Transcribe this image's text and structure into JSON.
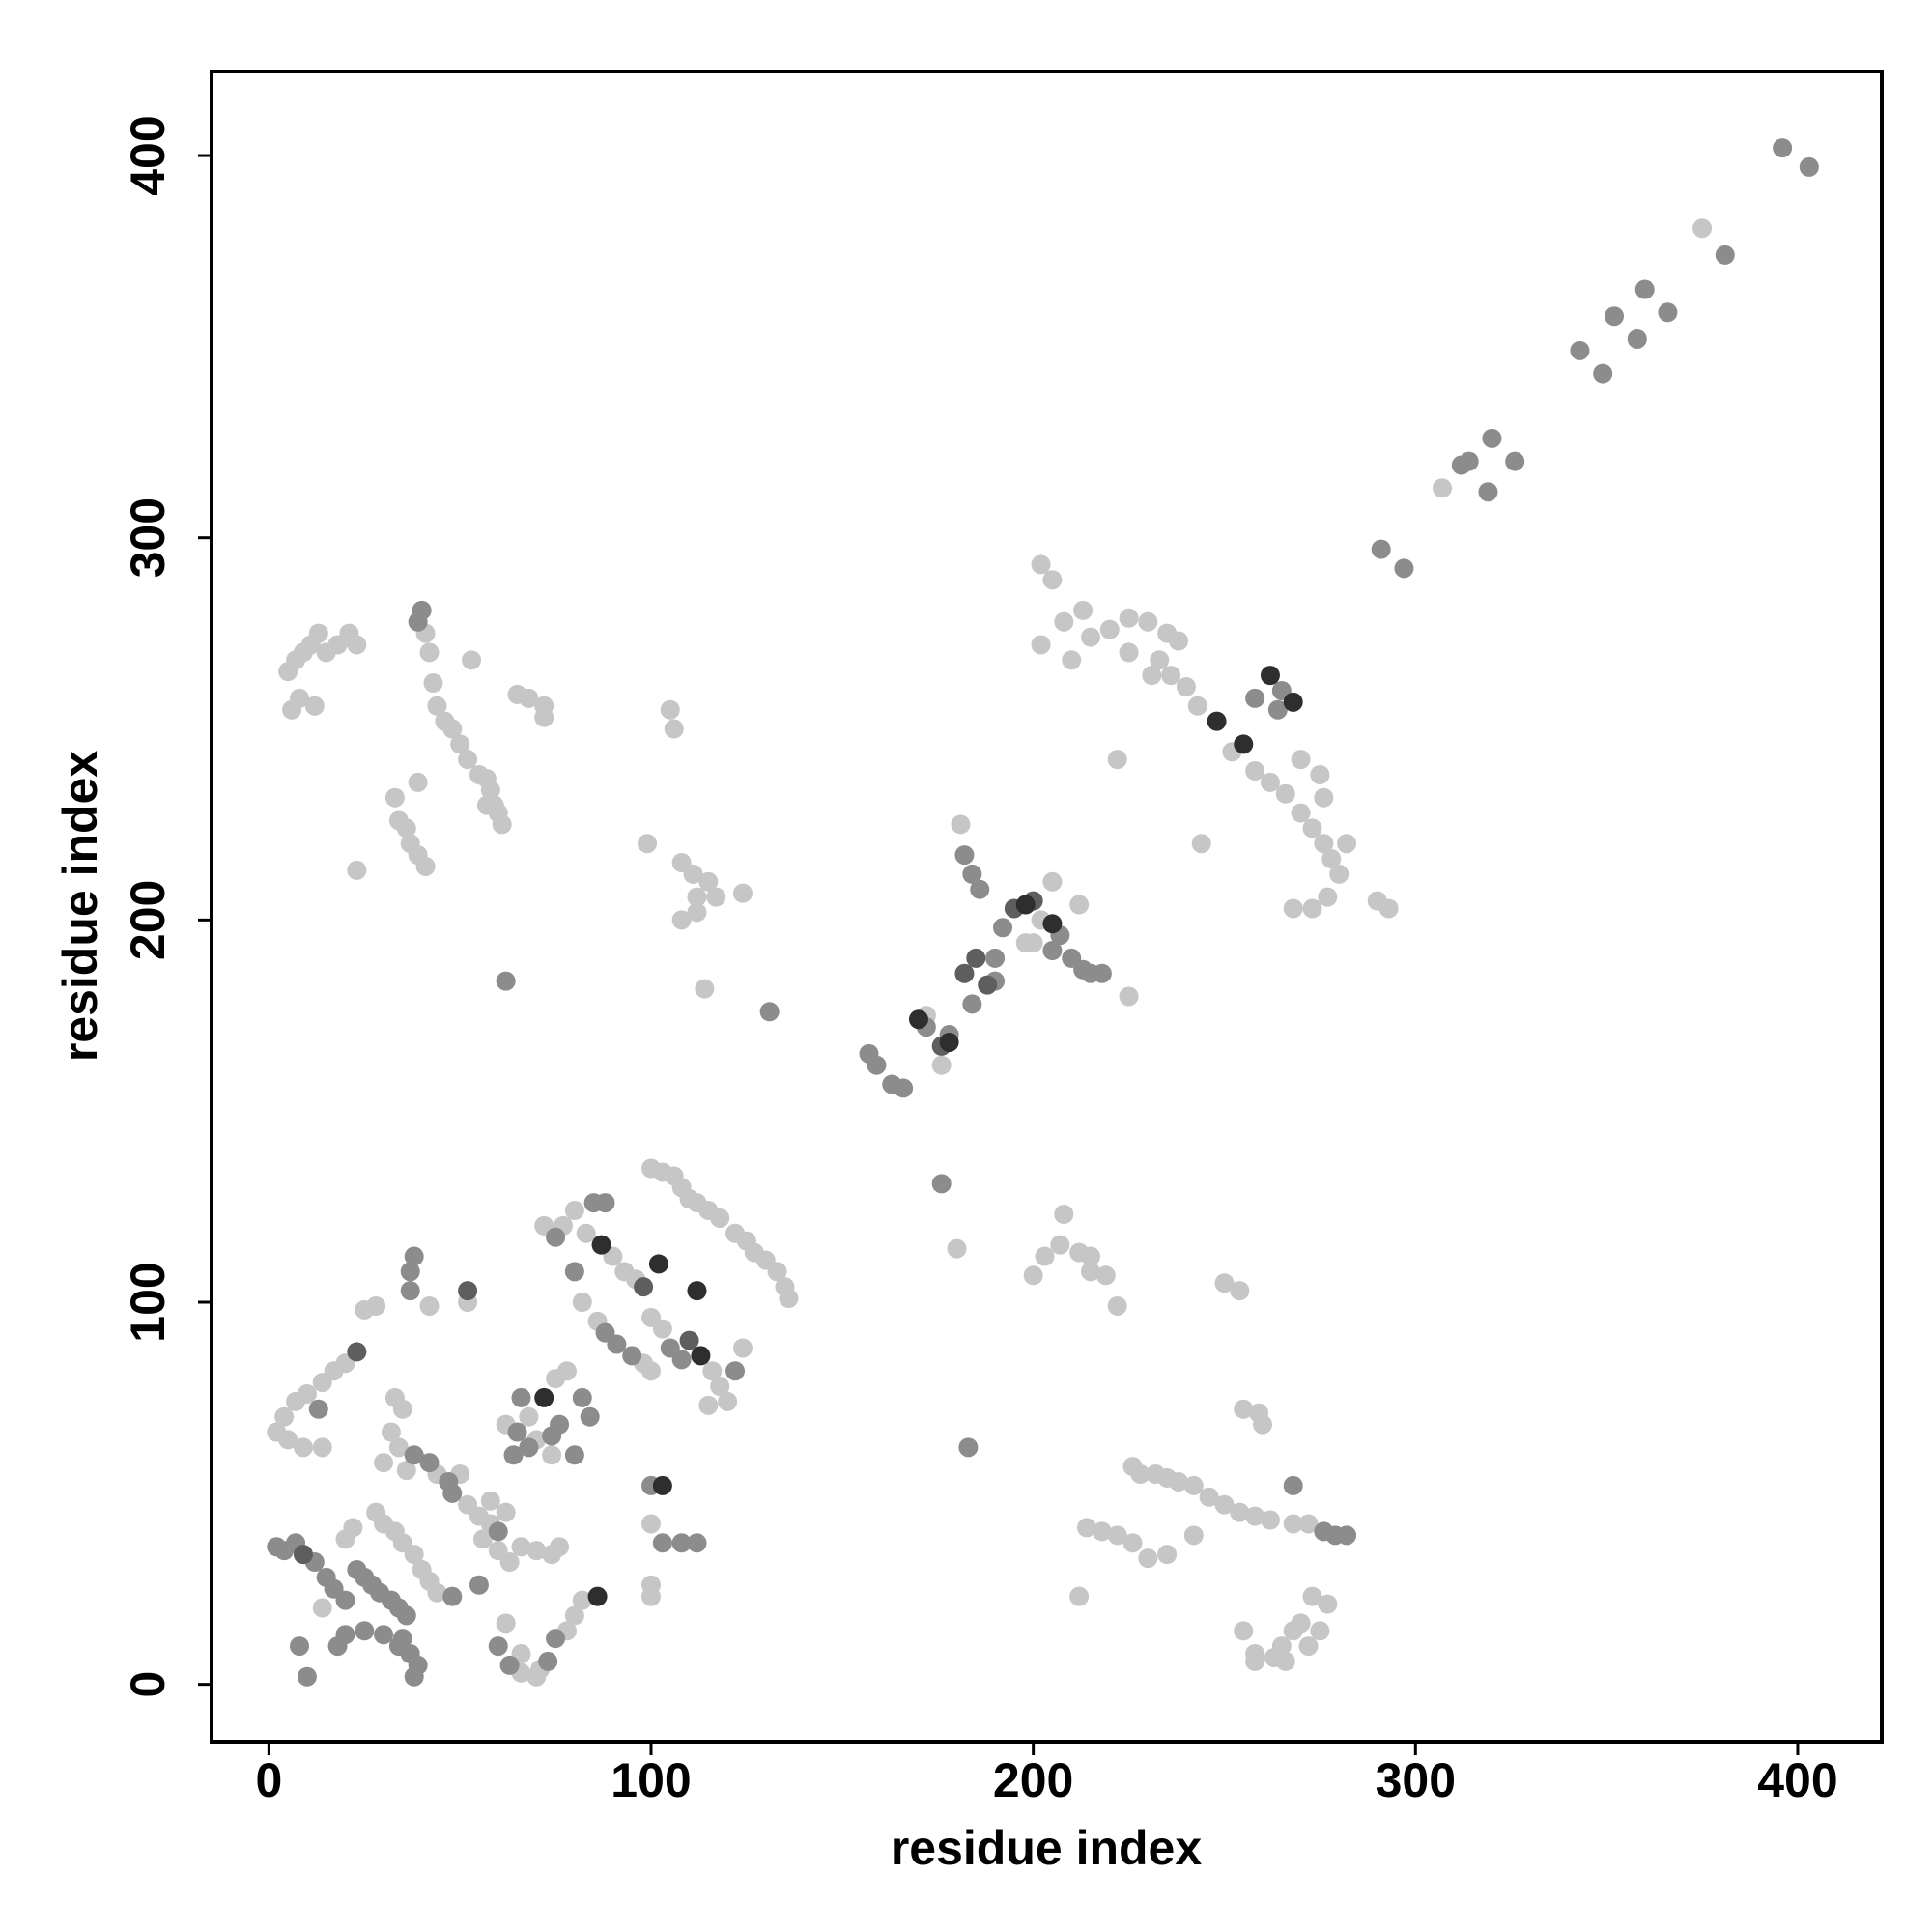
{
  "chart_data": {
    "type": "scatter",
    "x_label": "residue index",
    "y_label": "residue index",
    "xlim": [
      -15,
      422
    ],
    "ylim": [
      -15,
      422
    ],
    "xticks": [
      0,
      100,
      200,
      300,
      400
    ],
    "yticks": [
      0,
      100,
      200,
      300,
      400
    ],
    "series": [
      {
        "color": "#c6c6c6",
        "x": [
          375,
          307,
          202,
          205,
          202,
          208,
          213,
          220,
          225,
          230,
          235,
          238,
          233,
          236,
          240,
          243,
          252,
          258,
          262,
          266,
          270,
          273,
          276,
          278,
          280,
          277,
          273,
          268,
          282,
          276,
          275,
          270,
          290,
          293,
          244,
          222,
          210,
          215,
          225,
          231,
          202,
          212,
          205,
          181,
          176,
          172,
          198,
          200,
          225,
          5,
          7,
          9,
          11,
          13,
          15,
          8,
          6,
          12,
          18,
          21,
          23,
          41,
          42,
          43,
          44,
          46,
          48,
          50,
          52,
          55,
          57,
          58,
          59,
          60,
          61,
          57,
          33,
          34,
          36,
          37,
          39,
          41,
          39,
          23,
          53,
          65,
          68,
          72,
          72,
          105,
          106,
          99,
          108,
          111,
          115,
          112,
          117,
          124,
          108,
          112,
          114,
          200,
          203,
          207,
          208,
          212,
          215,
          219,
          222,
          215,
          250,
          254,
          180,
          226,
          228,
          232,
          235,
          238,
          242,
          246,
          250,
          254,
          258,
          262,
          255,
          259,
          260,
          214,
          218,
          222,
          226,
          230,
          235,
          242,
          268,
          272,
          273,
          277,
          270,
          275,
          268,
          265,
          263,
          258,
          255,
          258,
          266,
          272,
          212,
          100,
          103,
          106,
          108,
          110,
          112,
          115,
          118,
          122,
          125,
          127,
          130,
          133,
          135,
          136,
          83,
          90,
          93,
          96,
          100,
          103,
          116,
          118,
          120,
          115,
          86,
          98,
          100,
          82,
          77,
          72,
          80,
          78,
          75,
          68,
          70,
          74,
          62,
          124,
          28,
          25,
          42,
          20,
          17,
          14,
          10,
          7,
          4,
          2,
          5,
          9,
          14,
          33,
          32,
          34,
          30,
          36,
          44,
          50,
          52,
          55,
          58,
          56,
          60,
          63,
          66,
          70,
          74,
          76,
          58,
          62,
          28,
          30,
          33,
          35,
          38,
          40,
          42,
          44,
          22,
          20,
          14,
          62,
          66,
          71,
          66,
          70,
          78,
          80,
          82,
          100,
          100,
          100,
          52,
          35
        ],
        "values": [
          381,
          313,
          293,
          289,
          272,
          278,
          281,
          276,
          279,
          278,
          275,
          273,
          268,
          264,
          261,
          256,
          244,
          239,
          236,
          233,
          228,
          224,
          220,
          216,
          212,
          206,
          203,
          203,
          220,
          232,
          238,
          242,
          205,
          203,
          220,
          242,
          268,
          274,
          270,
          264,
          200,
          204,
          210,
          225,
          162,
          175,
          194,
          194,
          180,
          265,
          268,
          270,
          272,
          275,
          270,
          258,
          255,
          256,
          272,
          275,
          272,
          275,
          270,
          262,
          256,
          252,
          250,
          246,
          242,
          238,
          237,
          234,
          230,
          228,
          225,
          230,
          232,
          226,
          224,
          220,
          217,
          214,
          236,
          213,
          268,
          259,
          258,
          256,
          253,
          255,
          250,
          220,
          215,
          212,
          210,
          206,
          206,
          207,
          200,
          202,
          182,
          107,
          112,
          115,
          123,
          113,
          108,
          107,
          99,
          112,
          105,
          103,
          114,
          57,
          55,
          55,
          54,
          53,
          52,
          49,
          47,
          45,
          44,
          43,
          72,
          71,
          68,
          41,
          40,
          39,
          37,
          33,
          34,
          39,
          42,
          42,
          23,
          21,
          16,
          14,
          14,
          10,
          7,
          8,
          14,
          6,
          6,
          10,
          23,
          135,
          134,
          133,
          130,
          127,
          126,
          124,
          122,
          118,
          116,
          113,
          111,
          108,
          104,
          101,
          118,
          112,
          108,
          106,
          96,
          93,
          82,
          78,
          74,
          73,
          95,
          84,
          82,
          100,
          120,
          120,
          124,
          82,
          80,
          70,
          64,
          60,
          68,
          88,
          99,
          98,
          99,
          84,
          82,
          79,
          76,
          74,
          70,
          66,
          64,
          62,
          62,
          75,
          66,
          62,
          58,
          56,
          55,
          55,
          47,
          44,
          42,
          38,
          35,
          32,
          36,
          35,
          34,
          36,
          48,
          45,
          45,
          42,
          40,
          37,
          34,
          30,
          27,
          24,
          41,
          38,
          20,
          16,
          8,
          4,
          3,
          2,
          14,
          18,
          22,
          26,
          23,
          42,
          100,
          72
        ]
      },
      {
        "color": "#8c8c8c",
        "x": [
          396,
          403,
          381,
          366,
          360,
          352,
          343,
          349,
          358,
          312,
          314,
          319,
          320,
          326,
          291,
          297,
          258,
          265,
          264,
          157,
          159,
          163,
          166,
          172,
          178,
          184,
          190,
          192,
          207,
          210,
          213,
          215,
          218,
          182,
          184,
          186,
          190,
          205,
          40,
          39,
          62,
          131,
          183,
          176,
          268,
          276,
          279,
          282,
          88,
          91,
          95,
          105,
          108,
          80,
          75,
          85,
          88,
          65,
          66,
          122,
          38,
          37,
          37,
          13,
          38,
          42,
          47,
          48,
          60,
          2,
          4,
          7,
          12,
          15,
          17,
          20,
          23,
          25,
          27,
          29,
          32,
          34,
          36,
          35,
          37,
          39,
          38,
          34,
          30,
          25,
          20,
          18,
          8,
          10,
          48,
          60,
          63,
          73,
          75,
          100,
          103,
          108,
          112,
          55,
          82,
          84,
          80,
          74,
          76,
          68,
          64
        ],
        "values": [
          402,
          397,
          374,
          359,
          365,
          358,
          349,
          343,
          352,
          319,
          320,
          312,
          326,
          320,
          297,
          292,
          258,
          260,
          255,
          165,
          162,
          157,
          156,
          172,
          170,
          178,
          184,
          198,
          196,
          190,
          187,
          186,
          186,
          217,
          212,
          208,
          190,
          192,
          281,
          278,
          184,
          176,
          62,
          131,
          52,
          40,
          39,
          39,
          92,
          89,
          86,
          88,
          85,
          108,
          117,
          126,
          126,
          66,
          75,
          82,
          112,
          108,
          103,
          72,
          60,
          58,
          53,
          50,
          40,
          36,
          35,
          37,
          32,
          28,
          25,
          22,
          30,
          28,
          26,
          24,
          22,
          20,
          18,
          12,
          8,
          5,
          2,
          10,
          13,
          14,
          13,
          10,
          10,
          2,
          23,
          10,
          5,
          6,
          12,
          52,
          37,
          37,
          37,
          26,
          75,
          70,
          60,
          65,
          68,
          62,
          60
        ]
      },
      {
        "color": "#5e5e5e",
        "x": [
          176,
          182,
          185,
          188,
          195,
          200,
          52,
          23,
          9,
          110,
          98
        ],
        "values": [
          167,
          186,
          190,
          183,
          203,
          205,
          103,
          87,
          34,
          90,
          104
        ]
      },
      {
        "color": "#2e2e2e",
        "x": [
          248,
          255,
          262,
          268,
          170,
          198,
          205,
          178,
          87,
          102,
          113,
          112,
          72,
          86,
          103
        ],
        "values": [
          252,
          246,
          264,
          257,
          174,
          204,
          199,
          168,
          115,
          110,
          86,
          103,
          75,
          23,
          52
        ]
      }
    ]
  }
}
